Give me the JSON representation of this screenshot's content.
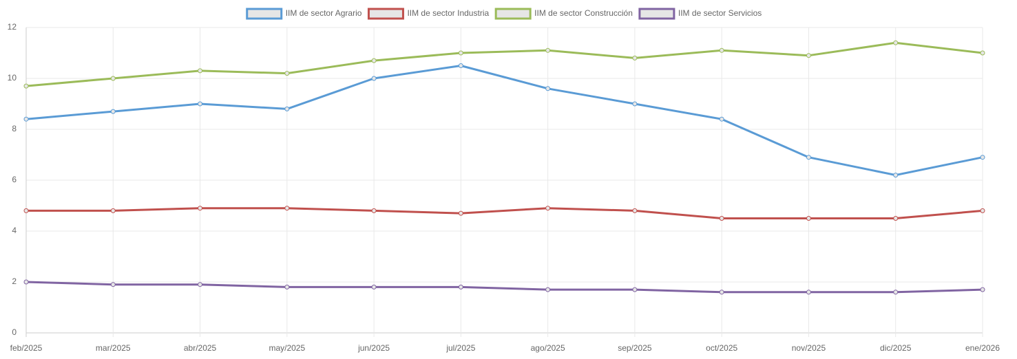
{
  "chart_data": {
    "type": "line",
    "categories": [
      "feb/2025",
      "mar/2025",
      "abr/2025",
      "may/2025",
      "jun/2025",
      "jul/2025",
      "ago/2025",
      "sep/2025",
      "oct/2025",
      "nov/2025",
      "dic/2025",
      "ene/2026"
    ],
    "series": [
      {
        "name": "IIM de sector Agrario",
        "color": "#5a9bd5",
        "values": [
          8.4,
          8.7,
          9.0,
          8.8,
          10.0,
          10.5,
          9.6,
          9.0,
          8.4,
          6.9,
          6.2,
          6.9
        ]
      },
      {
        "name": "IIM de sector Industria",
        "color": "#c0504d",
        "values": [
          4.8,
          4.8,
          4.9,
          4.9,
          4.8,
          4.7,
          4.9,
          4.8,
          4.5,
          4.5,
          4.5,
          4.8
        ]
      },
      {
        "name": "IIM de sector Construcción",
        "color": "#9bbb59",
        "values": [
          9.7,
          10.0,
          10.3,
          10.2,
          10.7,
          11.0,
          11.1,
          10.8,
          11.1,
          10.9,
          11.4,
          11.0
        ]
      },
      {
        "name": "IIM de sector Servicios",
        "color": "#8064a2",
        "values": [
          2.0,
          1.9,
          1.9,
          1.8,
          1.8,
          1.8,
          1.7,
          1.7,
          1.6,
          1.6,
          1.6,
          1.7
        ]
      }
    ],
    "ylim": [
      0,
      12
    ],
    "yticks": [
      0,
      2,
      4,
      6,
      8,
      10,
      12
    ],
    "grid": true,
    "legend": "top"
  }
}
